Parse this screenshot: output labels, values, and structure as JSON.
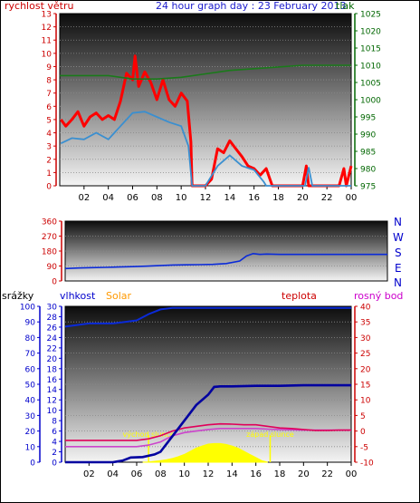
{
  "header": {
    "wind_label": "rychlost větru",
    "title": "24 hour graph day : 23 February 2013",
    "pressure_label": "tlak"
  },
  "colors": {
    "wind": "#ff0000",
    "wind_avg": "#3a8fd0",
    "pressure": "#1a7a1a",
    "direction": "#0a2ad8",
    "rain": "#0000a0",
    "humidity": "#0a2ad8",
    "solar": "#ffff00",
    "temperature": "#e0005a",
    "dewpoint": "#cc44cc",
    "axis_left": "#cc0000",
    "axis_right": "#006600",
    "axis_rain": "#0000cc",
    "axis_temp": "#cc0000",
    "label_solar": "#ff9900",
    "label_dew": "#cc00cc"
  },
  "bottom_labels": {
    "rain": "srážky",
    "humidity": "vlhkost",
    "solar": "Solar",
    "temperature": "teplota",
    "dewpoint": "rosný bod"
  },
  "compass": [
    "N",
    "W",
    "S",
    "E",
    "N"
  ],
  "chart_data": [
    {
      "type": "line",
      "title": "24 hour graph day : 23 February 2013",
      "xlabel": "",
      "x_ticks": [
        "02",
        "04",
        "06",
        "08",
        "10",
        "12",
        "14",
        "16",
        "18",
        "20",
        "22",
        "00"
      ],
      "y_left": {
        "label": "rychlost větru",
        "range": [
          0,
          13
        ],
        "ticks": [
          0,
          1,
          2,
          3,
          4,
          5,
          6,
          7,
          8,
          9,
          10,
          11,
          12,
          13
        ]
      },
      "y_right": {
        "label": "tlak",
        "range": [
          975,
          1025
        ],
        "ticks": [
          975,
          980,
          985,
          990,
          995,
          1000,
          1005,
          1010,
          1015,
          1020,
          1025
        ]
      },
      "series": [
        {
          "name": "rychlost větru",
          "axis": "left",
          "x": [
            0.1,
            0.5,
            1.0,
            1.5,
            2.0,
            2.5,
            3.0,
            3.5,
            4.0,
            4.5,
            5.0,
            5.5,
            6.0,
            6.2,
            6.5,
            7.0,
            7.5,
            8.0,
            8.5,
            9.0,
            9.5,
            10.0,
            10.5,
            10.8,
            10.9,
            11.0,
            11.5,
            12.0,
            12.5,
            13.0,
            13.5,
            14.0,
            14.5,
            15.0,
            15.5,
            16.0,
            16.5,
            17.0,
            17.5,
            18.0,
            19.0,
            20.0,
            20.3,
            20.5,
            21.0,
            22.0,
            23.0,
            23.4,
            23.6,
            24.0
          ],
          "y": [
            5.0,
            4.5,
            5.0,
            5.6,
            4.5,
            5.2,
            5.5,
            5.0,
            5.3,
            5.0,
            6.4,
            8.5,
            8.0,
            9.8,
            7.5,
            8.6,
            7.8,
            6.5,
            8.0,
            6.5,
            6.0,
            7.0,
            6.4,
            3.3,
            0.0,
            0.0,
            0.0,
            0.0,
            0.5,
            2.8,
            2.5,
            3.4,
            2.8,
            2.2,
            1.5,
            1.3,
            0.8,
            1.3,
            0.0,
            0.0,
            0.0,
            0.0,
            1.5,
            0.0,
            0.0,
            0.0,
            0.0,
            1.3,
            0.0,
            1.5
          ]
        },
        {
          "axis": "left",
          "x": [
            0.1,
            1.0,
            2.0,
            3.0,
            4.0,
            5.0,
            6.0,
            7.0,
            8.0,
            9.0,
            10.0,
            10.6,
            10.9,
            11.0,
            12.0,
            13.0,
            14.0,
            15.0,
            16.0,
            16.8,
            17.0,
            20.2,
            20.5,
            20.8,
            23.5,
            24.0
          ],
          "y": [
            3.2,
            3.6,
            3.5,
            4.0,
            3.5,
            4.5,
            5.5,
            5.6,
            5.2,
            4.8,
            4.5,
            3.0,
            0.0,
            0.0,
            0.0,
            1.5,
            2.3,
            1.5,
            1.2,
            0.3,
            0.0,
            0.0,
            1.4,
            0.0,
            0.0,
            0.0
          ]
        },
        {
          "axis": "right",
          "x": [
            0,
            2,
            4,
            6,
            8,
            10,
            12,
            14,
            16,
            18,
            20,
            22,
            24
          ],
          "y": [
            1007.0,
            1007.0,
            1007.0,
            1006.0,
            1006.0,
            1006.5,
            1007.5,
            1008.5,
            1009.0,
            1009.5,
            1010.0,
            1010.0,
            1010.0
          ]
        }
      ]
    },
    {
      "type": "line",
      "x_ticks": [
        "02",
        "04",
        "06",
        "08",
        "10",
        "12",
        "14",
        "16",
        "18",
        "20",
        "22",
        "00"
      ],
      "y_left": {
        "range": [
          0,
          360
        ],
        "ticks": [
          0,
          90,
          180,
          270,
          360
        ]
      },
      "series": [
        {
          "axis": "left",
          "x": [
            0,
            1,
            2,
            3,
            4,
            5,
            6,
            7,
            8,
            9,
            10,
            11,
            12,
            13,
            13.5,
            14,
            14.5,
            15,
            16,
            17,
            18,
            19,
            20,
            21,
            22,
            23,
            24
          ],
          "y": [
            75,
            78,
            80,
            82,
            84,
            86,
            89,
            92,
            96,
            97,
            98,
            100,
            105,
            120,
            150,
            165,
            160,
            162,
            160,
            160,
            160,
            160,
            160,
            160,
            160,
            160,
            160
          ]
        }
      ]
    },
    {
      "type": "line",
      "x_ticks": [
        "02",
        "04",
        "06",
        "08",
        "10",
        "12",
        "14",
        "16",
        "18",
        "20",
        "22",
        "00"
      ],
      "y_rain": {
        "label": "srážky",
        "range": [
          0,
          100
        ],
        "ticks": [
          0,
          10,
          20,
          30,
          40,
          50,
          60,
          70,
          80,
          90,
          100
        ]
      },
      "y_humidity": {
        "label": "vlhkost",
        "range": [
          0,
          30
        ],
        "ticks": [
          0,
          2,
          4,
          6,
          8,
          10,
          12,
          14,
          16,
          18,
          20,
          22,
          24,
          26,
          28,
          30
        ]
      },
      "y_temp": {
        "label": "teplota",
        "range": [
          -10,
          40
        ],
        "ticks": [
          -10,
          -5,
          0,
          5,
          10,
          15,
          20,
          25,
          30,
          35,
          40
        ]
      },
      "annotations": [
        "východ slunce",
        "západ slunce"
      ],
      "series": [
        {
          "axis": "rain",
          "x": [
            0,
            1,
            2,
            3,
            4,
            5,
            6,
            7,
            8,
            9,
            10,
            11,
            12,
            13,
            14,
            15,
            16,
            17,
            18,
            19,
            20,
            21,
            22,
            23,
            24
          ],
          "y": [
            87,
            88,
            89,
            89,
            89,
            90,
            91,
            95,
            98,
            99,
            99,
            99,
            99,
            99,
            99,
            99,
            99,
            99,
            99,
            99,
            99,
            99,
            99,
            99,
            99
          ]
        },
        {
          "axis": "humidity",
          "x": [
            0,
            4,
            4.8,
            5.5,
            6.5,
            7.5,
            8,
            9,
            10,
            11,
            12,
            12.5,
            13,
            14,
            16,
            18,
            20,
            22,
            24
          ],
          "y": [
            0.0,
            0.0,
            0.3,
            0.9,
            1.0,
            1.5,
            2.0,
            5.0,
            8.0,
            11.0,
            13.0,
            14.5,
            14.6,
            14.6,
            14.7,
            14.7,
            14.8,
            14.8,
            14.8
          ]
        },
        {
          "axis": "temp",
          "x": [
            0,
            2,
            4,
            6,
            7,
            8,
            9,
            10,
            11,
            12,
            13,
            14,
            15,
            16,
            17,
            18,
            19,
            20,
            21,
            22,
            23,
            24
          ],
          "y": [
            -3.0,
            -3.0,
            -3.0,
            -3.0,
            -2.5,
            -1.5,
            0.0,
            1.0,
            1.5,
            2.0,
            2.3,
            2.2,
            2.0,
            2.0,
            1.5,
            1.0,
            0.8,
            0.5,
            0.2,
            0.2,
            0.3,
            0.3
          ]
        },
        {
          "axis": "temp",
          "x": [
            0,
            2,
            4,
            6,
            7,
            8,
            9,
            10,
            11,
            12,
            13,
            14,
            15,
            16,
            17,
            18,
            20,
            22,
            24
          ],
          "y": [
            -5.0,
            -5.0,
            -5.0,
            -5.0,
            -4.5,
            -3.5,
            -1.5,
            -0.5,
            0.0,
            0.5,
            0.8,
            0.8,
            0.8,
            0.8,
            0.6,
            0.5,
            0.3,
            0.3,
            0.3
          ]
        },
        {
          "axis": "temp",
          "x": [
            6.5,
            7,
            7.5,
            8,
            8.5,
            9,
            9.5,
            10,
            10.5,
            11,
            11.5,
            12,
            12.5,
            13,
            13.5,
            14,
            14.5,
            15,
            15.5,
            16,
            16.5,
            17
          ],
          "y": [
            -10,
            -9.9,
            -9.7,
            -9.5,
            -9.2,
            -8.8,
            -8.2,
            -7.5,
            -6.5,
            -5.5,
            -4.8,
            -4.2,
            -4.0,
            -4.0,
            -4.3,
            -4.8,
            -5.5,
            -6.5,
            -7.5,
            -8.5,
            -9.5,
            -10
          ]
        }
      ]
    }
  ]
}
